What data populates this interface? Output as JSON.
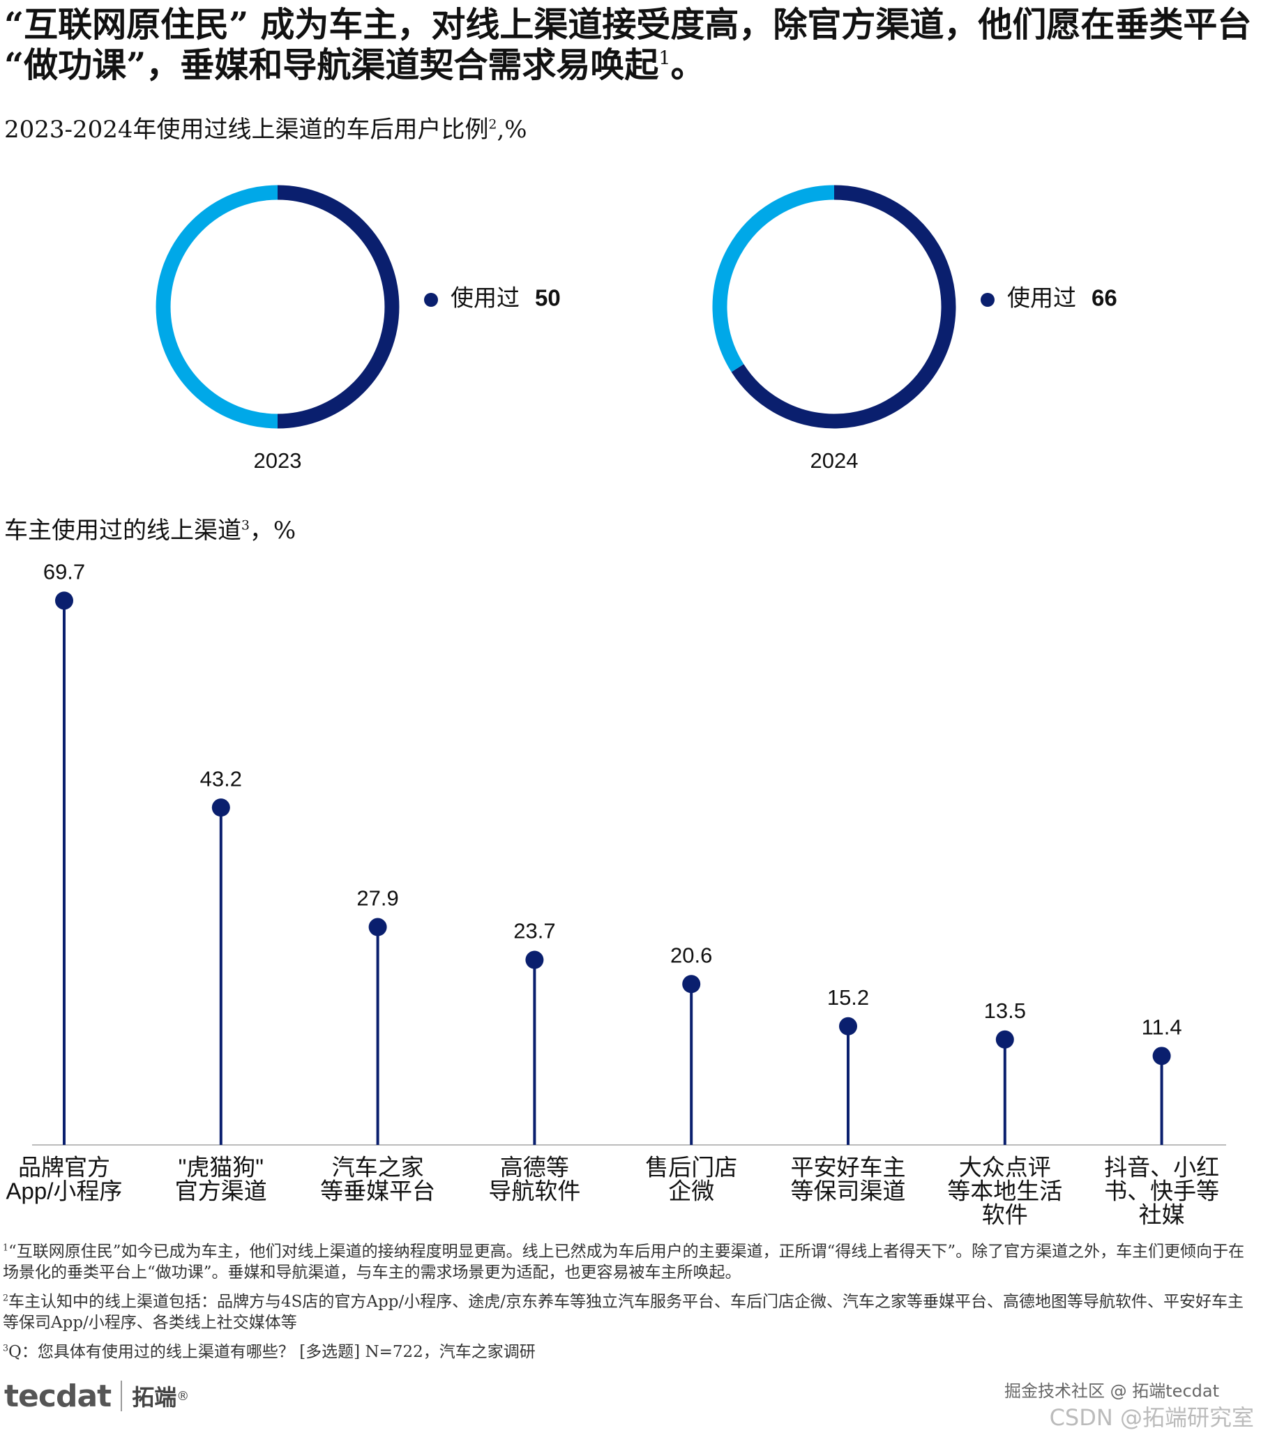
{
  "header": {
    "title": "“互联网原住民” 成为车主，对线上渠道接受度高，除官方渠道，他们愿在垂类平台 “做功课”，垂媒和导航渠道契合需求易唤起",
    "title_note": "1",
    "title_end": "。"
  },
  "chart_data": [
    {
      "type": "donut",
      "section": {
        "text": "2023-2024年使用过线上渠道的车后用户比例",
        "note": "2",
        "unit": ",%"
      },
      "title": "2023",
      "categories": [
        "使用过",
        null
      ],
      "values": [
        50,
        50
      ],
      "colors": [
        "#0a1f6e",
        "#00a8e8"
      ]
    },
    {
      "type": "donut",
      "title": "2024",
      "categories": [
        "使用过",
        null
      ],
      "values": [
        66,
        34
      ],
      "colors": [
        "#0a1f6e",
        "#00a8e8"
      ]
    },
    {
      "type": "lollipop",
      "section": {
        "text": "车主使用过的线上渠道",
        "note": "3",
        "unit": "，%"
      },
      "categories": [
        [
          "品牌官方",
          "App/小程序"
        ],
        [
          "\"虎猫狗\"",
          "官方渠道"
        ],
        [
          "汽车之家",
          "等垂媒平台"
        ],
        [
          "高德等",
          "导航软件"
        ],
        [
          "售后门店",
          "企微"
        ],
        [
          "平安好车主",
          "等保司渠道"
        ],
        [
          "大众点评",
          "等本地生活",
          "软件"
        ],
        [
          "抖音、小红",
          "书、快手等",
          "社媒"
        ]
      ],
      "values": [
        69.7,
        43.2,
        27.9,
        23.7,
        20.6,
        15.2,
        13.5,
        11.4
      ],
      "color": "#0a1f6e",
      "ylim": [
        0,
        75
      ]
    }
  ],
  "footnotes": [
    {
      "note": "1",
      "text": "“互联网原住民”如今已成为车主，他们对线上渠道的接纳程度明显更高。线上已然成为车后用户的主要渠道，正所谓“得线上者得天下”。除了官方渠道之外，车主们更倾向于在场景化的垂类平台上“做功课”。垂媒和导航渠道，与车主的需求场景更为适配，也更容易被车主所唤起。"
    },
    {
      "note": "2",
      "text": "车主认知中的线上渠道包括：品牌方与4S店的官方App/小程序、途虎/京东养车等独立汽车服务平台、车后门店企微、汽车之家等垂媒平台、高德地图等导航软件、平安好车主等保司App/小程序、各类线上社交媒体等"
    },
    {
      "note": "3",
      "text": "Q：您具体有使用过的线上渠道有哪些？ [多选题] N=722，汽车之家调研"
    }
  ],
  "footer": {
    "logo": "tecdat",
    "brand": "拓端",
    "mark": "®",
    "watermark": "掘金技术社区 @ 拓端tecdat",
    "watermark2": "CSDN @拓端研究室"
  }
}
